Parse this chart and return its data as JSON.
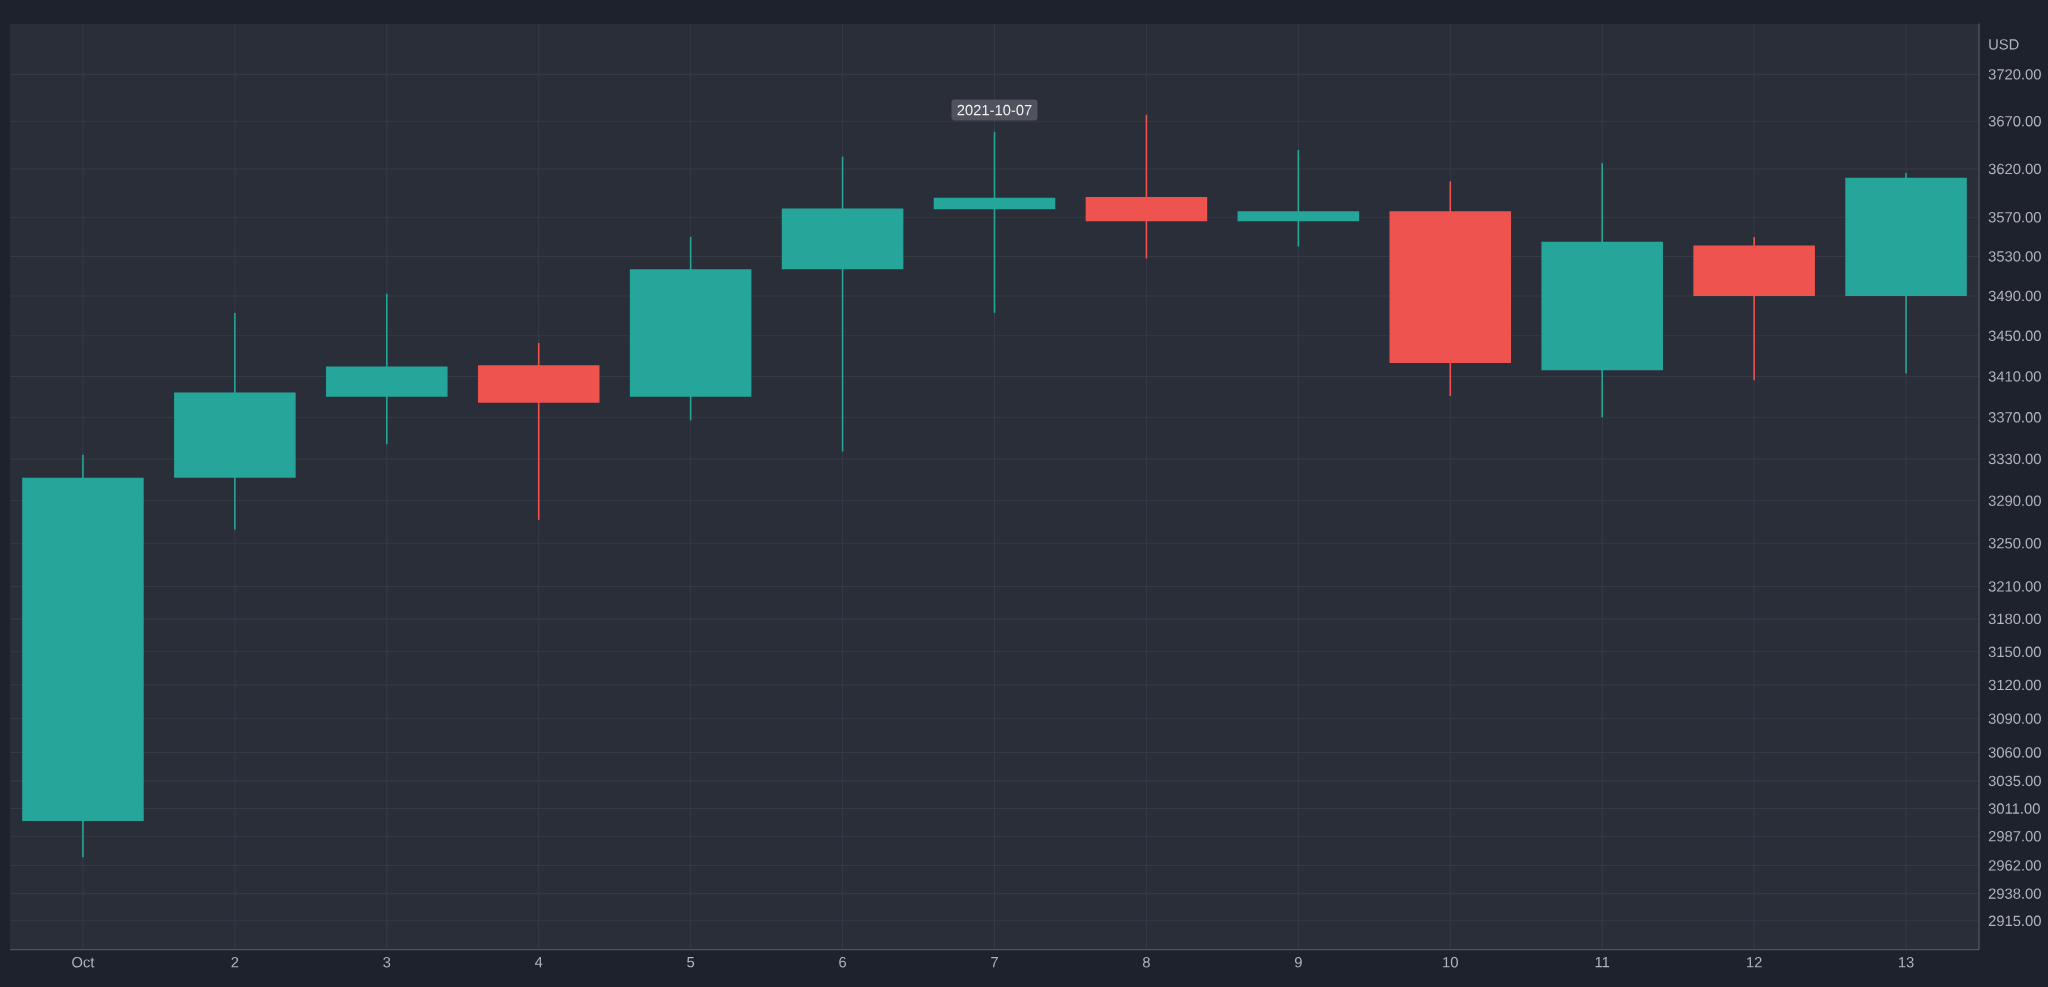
{
  "chart_data": {
    "type": "candlestick",
    "categories": [
      "Oct",
      "2",
      "3",
      "4",
      "5",
      "6",
      "7",
      "8",
      "9",
      "10",
      "11",
      "12",
      "13"
    ],
    "ohlc": [
      [
        3000,
        3334,
        2969,
        3312
      ],
      [
        3312,
        3473,
        3263,
        3394
      ],
      [
        3390,
        3492,
        3344,
        3420
      ],
      [
        3421,
        3443,
        3272,
        3384
      ],
      [
        3390,
        3550,
        3367,
        3517
      ],
      [
        3517,
        3633,
        3337,
        3579
      ],
      [
        3578,
        3659,
        3473,
        3590
      ],
      [
        3591,
        3677,
        3528,
        3566
      ],
      [
        3566,
        3640,
        3540,
        3576
      ],
      [
        3576,
        3607,
        3391,
        3423
      ],
      [
        3416,
        3626,
        3370,
        3545
      ],
      [
        3541,
        3550,
        3406,
        3490
      ],
      [
        3490,
        3616,
        3413,
        3611
      ]
    ],
    "colors": [
      "#26a69a",
      "#26a69a",
      "#26a69a",
      "#ef5350",
      "#26a69a",
      "#26a69a",
      "#26a69a",
      "#ef5350",
      "#26a69a",
      "#ef5350",
      "#26a69a",
      "#ef5350",
      "#26a69a"
    ],
    "ylabel": "USD",
    "log": true,
    "grid": true,
    "ylim": [
      2891,
      3775
    ],
    "yticks": [
      {
        "value": 2915,
        "label": "2915.00"
      },
      {
        "value": 2938,
        "label": "2938.00"
      },
      {
        "value": 2962,
        "label": "2962.00"
      },
      {
        "value": 2987,
        "label": "2987.00"
      },
      {
        "value": 3011,
        "label": "3011.00"
      },
      {
        "value": 3035,
        "label": "3035.00"
      },
      {
        "value": 3060,
        "label": "3060.00"
      },
      {
        "value": 3090,
        "label": "3090.00"
      },
      {
        "value": 3120,
        "label": "3120.00"
      },
      {
        "value": 3150,
        "label": "3150.00"
      },
      {
        "value": 3180,
        "label": "3180.00"
      },
      {
        "value": 3210,
        "label": "3210.00"
      },
      {
        "value": 3250,
        "label": "3250.00"
      },
      {
        "value": 3290,
        "label": "3290.00"
      },
      {
        "value": 3330,
        "label": "3330.00"
      },
      {
        "value": 3370,
        "label": "3370.00"
      },
      {
        "value": 3410,
        "label": "3410.00"
      },
      {
        "value": 3450,
        "label": "3450.00"
      },
      {
        "value": 3490,
        "label": "3490.00"
      },
      {
        "value": 3530,
        "label": "3530.00"
      },
      {
        "value": 3570,
        "label": "3570.00"
      },
      {
        "value": 3620,
        "label": "3620.00"
      },
      {
        "value": 3670,
        "label": "3670.00"
      },
      {
        "value": 3720,
        "label": "3720.00"
      }
    ],
    "annotations": [
      {
        "text": "2021-10-07",
        "x": "7",
        "y": 3659
      }
    ]
  }
}
